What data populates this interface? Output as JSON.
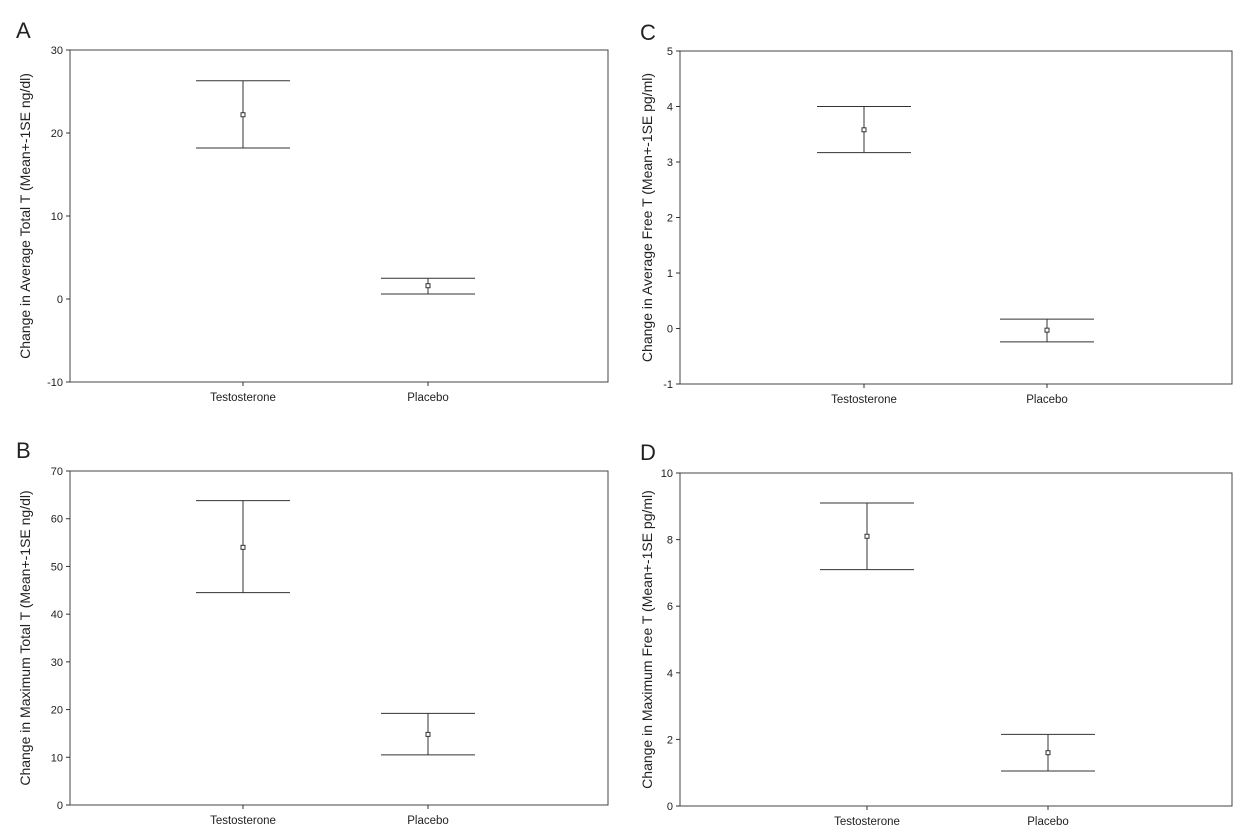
{
  "chart_data": [
    {
      "type": "errorbar",
      "panel": "A",
      "ylabel": "Change in Average Total T (Mean+-1SE ng/dl)",
      "categories": [
        "Testosterone",
        "Placebo"
      ],
      "ylim": [
        -10,
        30
      ],
      "yticks": [
        -10,
        0,
        10,
        20,
        30
      ],
      "points": [
        {
          "category": "Testosterone",
          "mean": 22.2,
          "lower": 18.2,
          "upper": 26.3
        },
        {
          "category": "Placebo",
          "mean": 1.6,
          "lower": 0.6,
          "upper": 2.5
        }
      ]
    },
    {
      "type": "errorbar",
      "panel": "B",
      "ylabel": "Change in Maximum Total T (Mean+-1SE ng/dl)",
      "categories": [
        "Testosterone",
        "Placebo"
      ],
      "ylim": [
        0,
        70
      ],
      "yticks": [
        0,
        10,
        20,
        30,
        40,
        50,
        60,
        70
      ],
      "points": [
        {
          "category": "Testosterone",
          "mean": 54.0,
          "lower": 44.5,
          "upper": 63.8
        },
        {
          "category": "Placebo",
          "mean": 14.8,
          "lower": 10.5,
          "upper": 19.2
        }
      ]
    },
    {
      "type": "errorbar",
      "panel": "C",
      "ylabel": "Change in Average Free T (Mean+-1SE pg/ml)",
      "categories": [
        "Testosterone",
        "Placebo"
      ],
      "ylim": [
        -1,
        5
      ],
      "yticks": [
        -1,
        0,
        1,
        2,
        3,
        4,
        5
      ],
      "points": [
        {
          "category": "Testosterone",
          "mean": 3.58,
          "lower": 3.17,
          "upper": 4.0
        },
        {
          "category": "Placebo",
          "mean": -0.03,
          "lower": -0.24,
          "upper": 0.17
        }
      ]
    },
    {
      "type": "errorbar",
      "panel": "D",
      "ylabel": "Change in Maximum Free T (Mean+-1SE pg/ml)",
      "categories": [
        "Testosterone",
        "Placebo"
      ],
      "ylim": [
        0,
        10
      ],
      "yticks": [
        0,
        2,
        4,
        6,
        8,
        10
      ],
      "points": [
        {
          "category": "Testosterone",
          "mean": 8.1,
          "lower": 7.1,
          "upper": 9.1
        },
        {
          "category": "Placebo",
          "mean": 1.6,
          "lower": 1.05,
          "upper": 2.15
        }
      ]
    }
  ]
}
